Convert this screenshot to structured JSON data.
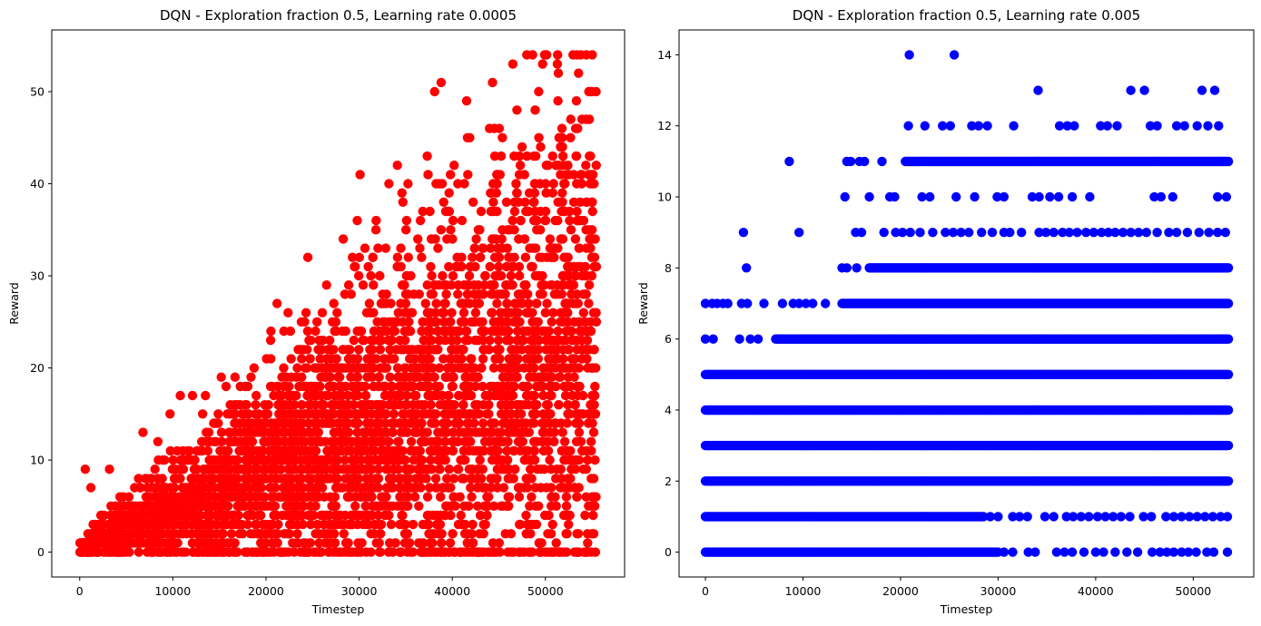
{
  "chart_data": [
    {
      "type": "scatter",
      "title": "DQN - Exploration fraction 0.5, Learning rate 0.0005",
      "xlabel": "Timestep",
      "ylabel": "Reward",
      "xlim": [
        -3000,
        58500
      ],
      "ylim": [
        -2.7,
        56.7
      ],
      "xticks": [
        0,
        10000,
        20000,
        30000,
        40000,
        50000
      ],
      "yticks": [
        0,
        10,
        20,
        30,
        40,
        50
      ],
      "color": "#ff0000",
      "grid": false,
      "trend": {
        "x_max": 55500,
        "rate": 0.00041,
        "sigma_ratio": 0.6,
        "min": 0,
        "max": 54
      },
      "points": [
        {
          "x": 600,
          "y": 9
        },
        {
          "x": 1200,
          "y": 7
        },
        {
          "x": 3200,
          "y": 9
        },
        {
          "x": 6800,
          "y": 13
        },
        {
          "x": 9700,
          "y": 15
        },
        {
          "x": 10800,
          "y": 17
        },
        {
          "x": 13500,
          "y": 17
        },
        {
          "x": 15200,
          "y": 19
        },
        {
          "x": 16800,
          "y": 16
        },
        {
          "x": 20500,
          "y": 23
        },
        {
          "x": 22700,
          "y": 21
        },
        {
          "x": 23800,
          "y": 25
        },
        {
          "x": 26500,
          "y": 29
        },
        {
          "x": 28300,
          "y": 34
        },
        {
          "x": 29800,
          "y": 36
        },
        {
          "x": 30100,
          "y": 41
        },
        {
          "x": 31800,
          "y": 35
        },
        {
          "x": 33200,
          "y": 40
        },
        {
          "x": 34100,
          "y": 42
        },
        {
          "x": 34600,
          "y": 39
        },
        {
          "x": 35100,
          "y": 36
        },
        {
          "x": 36300,
          "y": 34
        },
        {
          "x": 37400,
          "y": 41
        },
        {
          "x": 37600,
          "y": 37
        },
        {
          "x": 38100,
          "y": 50
        },
        {
          "x": 38800,
          "y": 51
        },
        {
          "x": 39300,
          "y": 37
        },
        {
          "x": 40600,
          "y": 40
        },
        {
          "x": 41300,
          "y": 40
        },
        {
          "x": 42800,
          "y": 35
        },
        {
          "x": 44500,
          "y": 46
        },
        {
          "x": 44800,
          "y": 37
        },
        {
          "x": 46500,
          "y": 53
        },
        {
          "x": 47100,
          "y": 38
        },
        {
          "x": 47300,
          "y": 42
        },
        {
          "x": 48000,
          "y": 54
        },
        {
          "x": 48200,
          "y": 37
        },
        {
          "x": 48900,
          "y": 48
        },
        {
          "x": 49300,
          "y": 45
        },
        {
          "x": 49700,
          "y": 53
        },
        {
          "x": 50100,
          "y": 42
        },
        {
          "x": 51800,
          "y": 39
        },
        {
          "x": 52100,
          "y": 40
        },
        {
          "x": 52400,
          "y": 41
        },
        {
          "x": 53300,
          "y": 43
        },
        {
          "x": 53400,
          "y": 54
        },
        {
          "x": 53900,
          "y": 40
        },
        {
          "x": 54800,
          "y": 40
        },
        {
          "x": 55000,
          "y": 35
        },
        {
          "x": 55300,
          "y": 31
        },
        {
          "x": 55400,
          "y": 20
        },
        {
          "x": 55200,
          "y": 8
        },
        {
          "x": 35000,
          "y": 2
        },
        {
          "x": 38700,
          "y": 3
        },
        {
          "x": 33200,
          "y": 4
        },
        {
          "x": 28500,
          "y": 4
        },
        {
          "x": 21000,
          "y": 2
        },
        {
          "x": 23300,
          "y": 1
        },
        {
          "x": 22500,
          "y": 2
        },
        {
          "x": 24200,
          "y": 1
        },
        {
          "x": 30700,
          "y": 5
        },
        {
          "x": 31300,
          "y": 8
        },
        {
          "x": 36000,
          "y": 6
        },
        {
          "x": 40200,
          "y": 6
        },
        {
          "x": 42000,
          "y": 8
        },
        {
          "x": 44800,
          "y": 8
        },
        {
          "x": 49500,
          "y": 7
        },
        {
          "x": 51600,
          "y": 7
        },
        {
          "x": 52300,
          "y": 7
        },
        {
          "x": 53600,
          "y": 7
        }
      ]
    },
    {
      "type": "scatter",
      "title": "DQN - Exploration fraction 0.5, Learning rate 0.005",
      "xlabel": "Timestep",
      "ylabel": "Reward",
      "xlim": [
        -2700,
        56200
      ],
      "ylim": [
        -0.7,
        14.7
      ],
      "xticks": [
        0,
        10000,
        20000,
        30000,
        40000,
        50000
      ],
      "yticks": [
        0,
        2,
        4,
        6,
        8,
        10,
        12,
        14
      ],
      "color": "#0000ff",
      "grid": false,
      "dense_rows": [
        {
          "y": 5,
          "from": 0,
          "to": 53600
        },
        {
          "y": 4,
          "from": 0,
          "to": 53600
        },
        {
          "y": 3,
          "from": 0,
          "to": 53600
        },
        {
          "y": 2,
          "from": 0,
          "to": 53600
        },
        {
          "y": 7,
          "from": 14000,
          "to": 53600
        },
        {
          "y": 6,
          "from": 7200,
          "to": 53600
        },
        {
          "y": 1,
          "from": 0,
          "to": 28500
        },
        {
          "y": 0,
          "from": 0,
          "to": 30000
        },
        {
          "y": 8,
          "from": 16800,
          "to": 53600
        },
        {
          "y": 11,
          "from": 20500,
          "to": 53600
        }
      ],
      "points": [
        {
          "x": 0,
          "y": 7
        },
        {
          "x": 700,
          "y": 7
        },
        {
          "x": 1200,
          "y": 7
        },
        {
          "x": 1800,
          "y": 7
        },
        {
          "x": 2300,
          "y": 7
        },
        {
          "x": 3700,
          "y": 7
        },
        {
          "x": 4300,
          "y": 7
        },
        {
          "x": 6000,
          "y": 7
        },
        {
          "x": 7900,
          "y": 7
        },
        {
          "x": 9000,
          "y": 7
        },
        {
          "x": 9600,
          "y": 7
        },
        {
          "x": 10300,
          "y": 7
        },
        {
          "x": 11000,
          "y": 7
        },
        {
          "x": 12300,
          "y": 7
        },
        {
          "x": 0,
          "y": 6
        },
        {
          "x": 800,
          "y": 6
        },
        {
          "x": 3500,
          "y": 6
        },
        {
          "x": 4600,
          "y": 6
        },
        {
          "x": 5400,
          "y": 6
        },
        {
          "x": 4200,
          "y": 8
        },
        {
          "x": 14000,
          "y": 8
        },
        {
          "x": 14500,
          "y": 8
        },
        {
          "x": 15500,
          "y": 8
        },
        {
          "x": 3900,
          "y": 9
        },
        {
          "x": 9600,
          "y": 9
        },
        {
          "x": 15400,
          "y": 9
        },
        {
          "x": 16000,
          "y": 9
        },
        {
          "x": 18300,
          "y": 9
        },
        {
          "x": 19500,
          "y": 9
        },
        {
          "x": 20200,
          "y": 9
        },
        {
          "x": 21000,
          "y": 9
        },
        {
          "x": 22000,
          "y": 9
        },
        {
          "x": 23300,
          "y": 9
        },
        {
          "x": 24600,
          "y": 9
        },
        {
          "x": 25400,
          "y": 9
        },
        {
          "x": 26200,
          "y": 9
        },
        {
          "x": 27000,
          "y": 9
        },
        {
          "x": 28300,
          "y": 9
        },
        {
          "x": 29400,
          "y": 9
        },
        {
          "x": 30600,
          "y": 9
        },
        {
          "x": 31200,
          "y": 9
        },
        {
          "x": 32400,
          "y": 9
        },
        {
          "x": 34200,
          "y": 9
        },
        {
          "x": 34900,
          "y": 9
        },
        {
          "x": 35700,
          "y": 9
        },
        {
          "x": 36600,
          "y": 9
        },
        {
          "x": 37300,
          "y": 9
        },
        {
          "x": 38100,
          "y": 9
        },
        {
          "x": 39000,
          "y": 9
        },
        {
          "x": 39800,
          "y": 9
        },
        {
          "x": 40600,
          "y": 9
        },
        {
          "x": 41300,
          "y": 9
        },
        {
          "x": 42000,
          "y": 9
        },
        {
          "x": 42800,
          "y": 9
        },
        {
          "x": 43600,
          "y": 9
        },
        {
          "x": 44400,
          "y": 9
        },
        {
          "x": 45200,
          "y": 9
        },
        {
          "x": 46300,
          "y": 9
        },
        {
          "x": 47500,
          "y": 9
        },
        {
          "x": 48300,
          "y": 9
        },
        {
          "x": 49400,
          "y": 9
        },
        {
          "x": 50600,
          "y": 9
        },
        {
          "x": 51600,
          "y": 9
        },
        {
          "x": 52500,
          "y": 9
        },
        {
          "x": 53300,
          "y": 9
        },
        {
          "x": 14300,
          "y": 10
        },
        {
          "x": 16800,
          "y": 10
        },
        {
          "x": 18900,
          "y": 10
        },
        {
          "x": 19400,
          "y": 10
        },
        {
          "x": 22200,
          "y": 10
        },
        {
          "x": 23000,
          "y": 10
        },
        {
          "x": 25700,
          "y": 10
        },
        {
          "x": 27600,
          "y": 10
        },
        {
          "x": 29900,
          "y": 10
        },
        {
          "x": 30600,
          "y": 10
        },
        {
          "x": 33500,
          "y": 10
        },
        {
          "x": 34200,
          "y": 10
        },
        {
          "x": 35300,
          "y": 10
        },
        {
          "x": 36200,
          "y": 10
        },
        {
          "x": 37600,
          "y": 10
        },
        {
          "x": 39400,
          "y": 10
        },
        {
          "x": 46000,
          "y": 10
        },
        {
          "x": 46700,
          "y": 10
        },
        {
          "x": 47900,
          "y": 10
        },
        {
          "x": 52500,
          "y": 10
        },
        {
          "x": 53400,
          "y": 10
        },
        {
          "x": 8600,
          "y": 11
        },
        {
          "x": 14500,
          "y": 11
        },
        {
          "x": 14900,
          "y": 11
        },
        {
          "x": 15800,
          "y": 11
        },
        {
          "x": 16300,
          "y": 11
        },
        {
          "x": 18100,
          "y": 11
        },
        {
          "x": 20800,
          "y": 12
        },
        {
          "x": 22500,
          "y": 12
        },
        {
          "x": 24300,
          "y": 12
        },
        {
          "x": 25100,
          "y": 12
        },
        {
          "x": 27300,
          "y": 12
        },
        {
          "x": 28000,
          "y": 12
        },
        {
          "x": 28900,
          "y": 12
        },
        {
          "x": 31600,
          "y": 12
        },
        {
          "x": 36300,
          "y": 12
        },
        {
          "x": 37100,
          "y": 12
        },
        {
          "x": 37800,
          "y": 12
        },
        {
          "x": 40500,
          "y": 12
        },
        {
          "x": 41200,
          "y": 12
        },
        {
          "x": 42200,
          "y": 12
        },
        {
          "x": 45600,
          "y": 12
        },
        {
          "x": 46300,
          "y": 12
        },
        {
          "x": 48300,
          "y": 12
        },
        {
          "x": 49100,
          "y": 12
        },
        {
          "x": 50400,
          "y": 12
        },
        {
          "x": 51500,
          "y": 12
        },
        {
          "x": 52600,
          "y": 12
        },
        {
          "x": 34100,
          "y": 13
        },
        {
          "x": 43600,
          "y": 13
        },
        {
          "x": 45000,
          "y": 13
        },
        {
          "x": 50900,
          "y": 13
        },
        {
          "x": 52200,
          "y": 13
        },
        {
          "x": 20900,
          "y": 14
        },
        {
          "x": 25500,
          "y": 14
        },
        {
          "x": 29200,
          "y": 1
        },
        {
          "x": 30000,
          "y": 1
        },
        {
          "x": 31500,
          "y": 1
        },
        {
          "x": 32200,
          "y": 1
        },
        {
          "x": 33000,
          "y": 1
        },
        {
          "x": 34800,
          "y": 1
        },
        {
          "x": 35700,
          "y": 1
        },
        {
          "x": 37000,
          "y": 1
        },
        {
          "x": 37700,
          "y": 1
        },
        {
          "x": 38500,
          "y": 1
        },
        {
          "x": 39300,
          "y": 1
        },
        {
          "x": 40200,
          "y": 1
        },
        {
          "x": 41000,
          "y": 1
        },
        {
          "x": 41800,
          "y": 1
        },
        {
          "x": 42600,
          "y": 1
        },
        {
          "x": 43500,
          "y": 1
        },
        {
          "x": 44900,
          "y": 1
        },
        {
          "x": 45700,
          "y": 1
        },
        {
          "x": 47200,
          "y": 1
        },
        {
          "x": 48000,
          "y": 1
        },
        {
          "x": 48800,
          "y": 1
        },
        {
          "x": 49600,
          "y": 1
        },
        {
          "x": 50400,
          "y": 1
        },
        {
          "x": 51200,
          "y": 1
        },
        {
          "x": 52000,
          "y": 1
        },
        {
          "x": 52800,
          "y": 1
        },
        {
          "x": 53500,
          "y": 1
        },
        {
          "x": 30600,
          "y": 0
        },
        {
          "x": 31500,
          "y": 0
        },
        {
          "x": 33100,
          "y": 0
        },
        {
          "x": 33800,
          "y": 0
        },
        {
          "x": 36000,
          "y": 0
        },
        {
          "x": 36800,
          "y": 0
        },
        {
          "x": 37600,
          "y": 0
        },
        {
          "x": 38800,
          "y": 0
        },
        {
          "x": 40000,
          "y": 0
        },
        {
          "x": 40800,
          "y": 0
        },
        {
          "x": 42000,
          "y": 0
        },
        {
          "x": 43200,
          "y": 0
        },
        {
          "x": 44300,
          "y": 0
        },
        {
          "x": 45800,
          "y": 0
        },
        {
          "x": 46600,
          "y": 0
        },
        {
          "x": 47300,
          "y": 0
        },
        {
          "x": 48000,
          "y": 0
        },
        {
          "x": 48800,
          "y": 0
        },
        {
          "x": 49500,
          "y": 0
        },
        {
          "x": 50300,
          "y": 0
        },
        {
          "x": 51400,
          "y": 0
        },
        {
          "x": 52100,
          "y": 0
        },
        {
          "x": 53500,
          "y": 0
        }
      ]
    }
  ]
}
